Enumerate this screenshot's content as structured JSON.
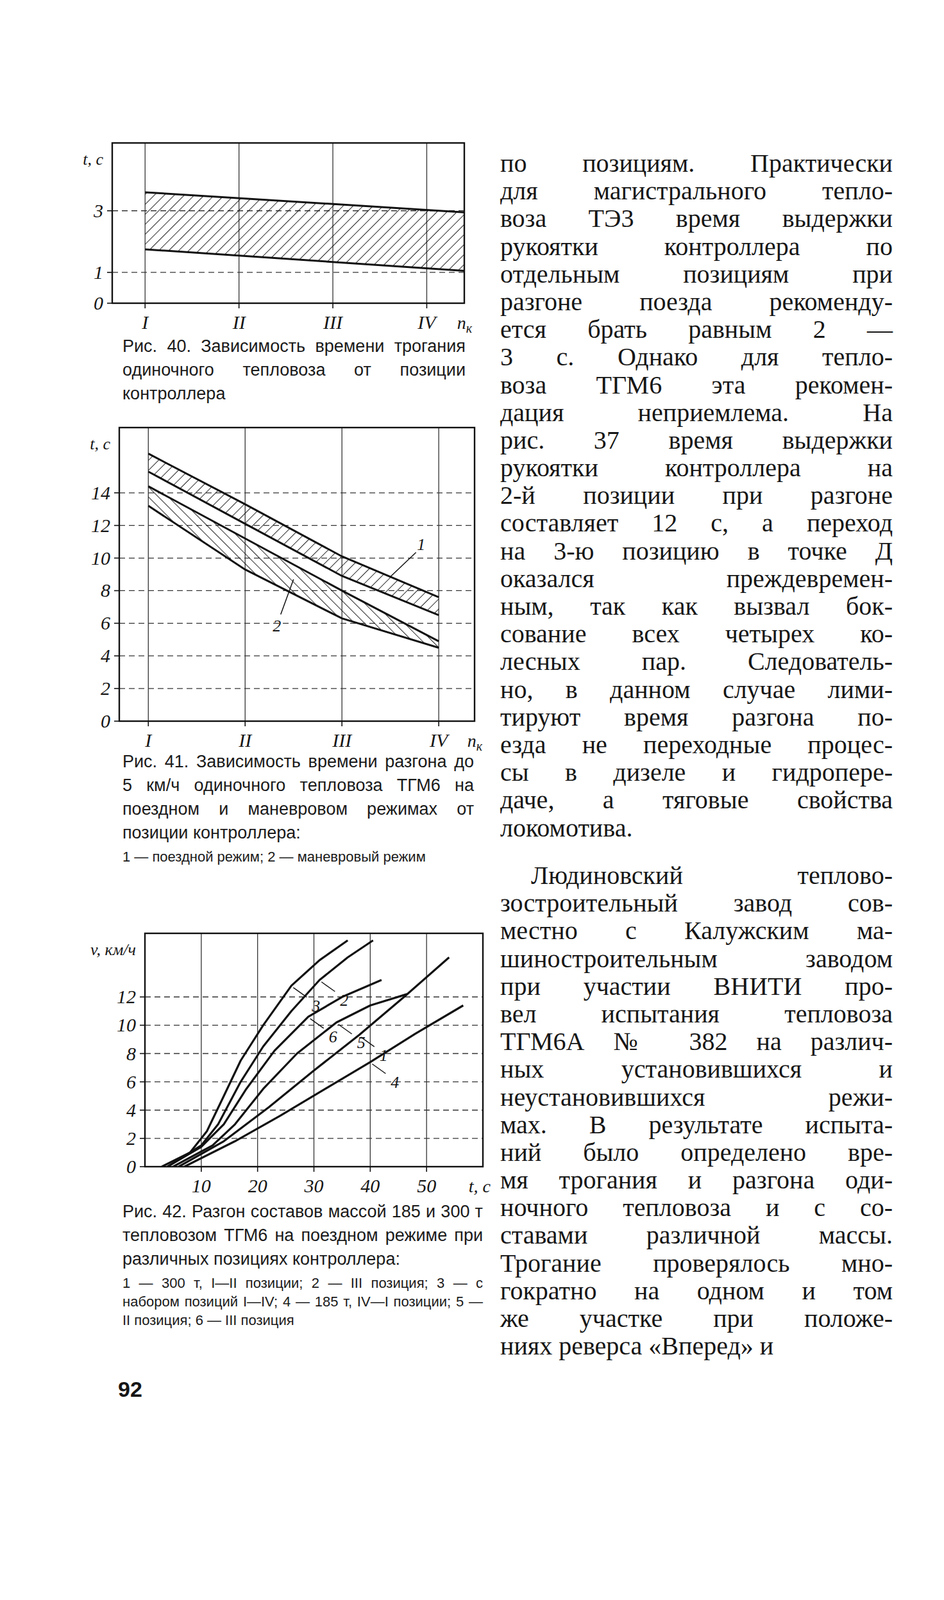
{
  "chart_data": [
    {
      "type": "band",
      "caption": "Рис. 40. Зависимость времени трогания одиночного тепловоза от позиции контроллера",
      "ylabel": "t, с",
      "xlabel": "n",
      "xlabel_subscript": "к",
      "x": [
        1,
        4.4
      ],
      "series": [
        {
          "upper": [
            3.6,
            2.95
          ],
          "lower": [
            1.75,
            1.05
          ]
        }
      ],
      "xlim": [
        0.65,
        4.4
      ],
      "ylim": [
        0,
        5.2
      ],
      "xticks": [
        {
          "value": 1,
          "label": "I"
        },
        {
          "value": 2,
          "label": "II"
        },
        {
          "value": 3,
          "label": "III"
        },
        {
          "value": 4,
          "label": "IV"
        }
      ],
      "yticks": [
        0,
        1,
        3
      ],
      "grid": true
    },
    {
      "type": "band",
      "caption": "Рис. 41. Зависимость времени разгона до 5 км/ч одиночного тепловоза ТГМ6 на поездном и маневровом режимах от позиции контроллера:",
      "note": "1 — поездной режим; 2 — маневровый режим",
      "ylabel": "t, с",
      "xlabel": "n",
      "xlabel_subscript": "к",
      "x": [
        1,
        2,
        3,
        4
      ],
      "series": [
        {
          "name": "1",
          "upper": [
            16.4,
            13.3,
            10.1,
            7.6
          ],
          "lower": [
            15.3,
            12.1,
            8.9,
            6.5
          ]
        },
        {
          "name": "2",
          "upper": [
            14.4,
            11.2,
            8.0,
            4.9
          ],
          "lower": [
            13.2,
            9.3,
            6.3,
            4.5
          ]
        }
      ],
      "xlim": [
        0.7,
        4.37
      ],
      "ylim": [
        0,
        18
      ],
      "xticks": [
        {
          "value": 1,
          "label": "I"
        },
        {
          "value": 2,
          "label": "II"
        },
        {
          "value": 3,
          "label": "III"
        },
        {
          "value": 4,
          "label": "IV"
        }
      ],
      "yticks": [
        0,
        2,
        4,
        6,
        8,
        10,
        12,
        14
      ],
      "grid": true
    },
    {
      "type": "line",
      "caption": "Рис. 42. Разгон составов массой 185 и 300 т тепловозом ТГМ6 на поездном режиме при различных позициях контроллера:",
      "note": "1 — 300 т, I—II позиции; 2 — III позиция; 3 — с набором позиций I—IV; 4 — 185 т, IV—I позиции; 5 — II позиция; 6 — III позиция",
      "ylabel": "v, км/ч",
      "xlabel": "t, с",
      "series": [
        {
          "name": "1",
          "x": [
            6,
            14,
            22,
            30,
            38,
            46,
            54
          ],
          "values": [
            0,
            1.8,
            4.2,
            6.8,
            9.3,
            12,
            14.8
          ]
        },
        {
          "name": "2",
          "x": [
            4,
            10,
            13,
            17,
            21,
            26,
            31,
            36,
            40.5
          ],
          "values": [
            0,
            1.5,
            3,
            6,
            8.5,
            11,
            13.2,
            14.8,
            16
          ]
        },
        {
          "name": "3",
          "x": [
            3,
            8,
            11,
            14,
            17,
            21,
            26,
            31,
            36
          ],
          "values": [
            0,
            1,
            2.5,
            5,
            7.5,
            10,
            12.8,
            14.6,
            16
          ]
        },
        {
          "name": "4",
          "x": [
            7,
            16,
            24,
            32,
            40,
            48,
            56.5
          ],
          "values": [
            0,
            1.8,
            3.6,
            5.5,
            7.4,
            9.4,
            11.4
          ]
        },
        {
          "name": "5",
          "x": [
            5,
            12,
            16,
            21,
            27,
            34,
            40,
            46.5
          ],
          "values": [
            0,
            1.5,
            3,
            5.5,
            8,
            10.2,
            11.4,
            12.2
          ]
        },
        {
          "name": "6",
          "x": [
            4,
            10,
            14,
            18,
            23,
            29,
            35,
            42
          ],
          "values": [
            0,
            1.4,
            3,
            5.5,
            8.2,
            10.6,
            12,
            13.2
          ]
        }
      ],
      "xlim": [
        0,
        60
      ],
      "ylim": [
        0,
        16.5
      ],
      "xticks": [
        10,
        20,
        30,
        40,
        50
      ],
      "yticks": [
        0,
        2,
        4,
        6,
        8,
        10,
        12
      ],
      "grid": true
    }
  ],
  "text_column": {
    "paragraphs": [
      [
        "по позициям. Практически",
        "для магистрального тепло-",
        "воза ТЭ3 время выдержки",
        "рукоятки контроллера по",
        "отдельным позициям при",
        "разгоне поезда рекоменду-",
        "ется брать равным 2 —",
        "3 с. Однако для тепло-",
        "воза ТГМ6 эта рекомен-",
        "дация неприемлема. На",
        "рис. 37 время выдержки",
        "рукоятки контроллера на",
        "2-й позиции при разгоне",
        "составляет 12 с, а переход",
        "на 3-ю позицию в точке Д",
        "оказался преждевремен-",
        "ным, так как вызвал бок-",
        "сование всех четырех ко-",
        "лесных пар. Следователь-",
        "но, в данном случае лими-",
        "тируют время разгона по-",
        "езда не переходные процес-",
        "сы в дизеле и гидропере-",
        "даче, а тяговые свойства",
        "локомотива."
      ],
      [
        "Людиновский теплово-",
        "зостроительный завод сов-",
        "местно с Калужским ма-",
        "шиностроительным заводом",
        "при участии ВНИТИ про-",
        "вел испытания тепловоза",
        "ТГМ6А № 382 на различ-",
        "ных установившихся и",
        "неустановившихся режи-",
        "мах. В результате испыта-",
        "ний было определено вре-",
        "мя трогания и разгона оди-",
        "ночного тепловоза и с со-",
        "ставами различной массы.",
        "Трогание проверялось мно-",
        "гократно на одном и том",
        "же участке при положе-",
        "ниях реверса «Вперед» и"
      ]
    ]
  },
  "page_number": "92"
}
